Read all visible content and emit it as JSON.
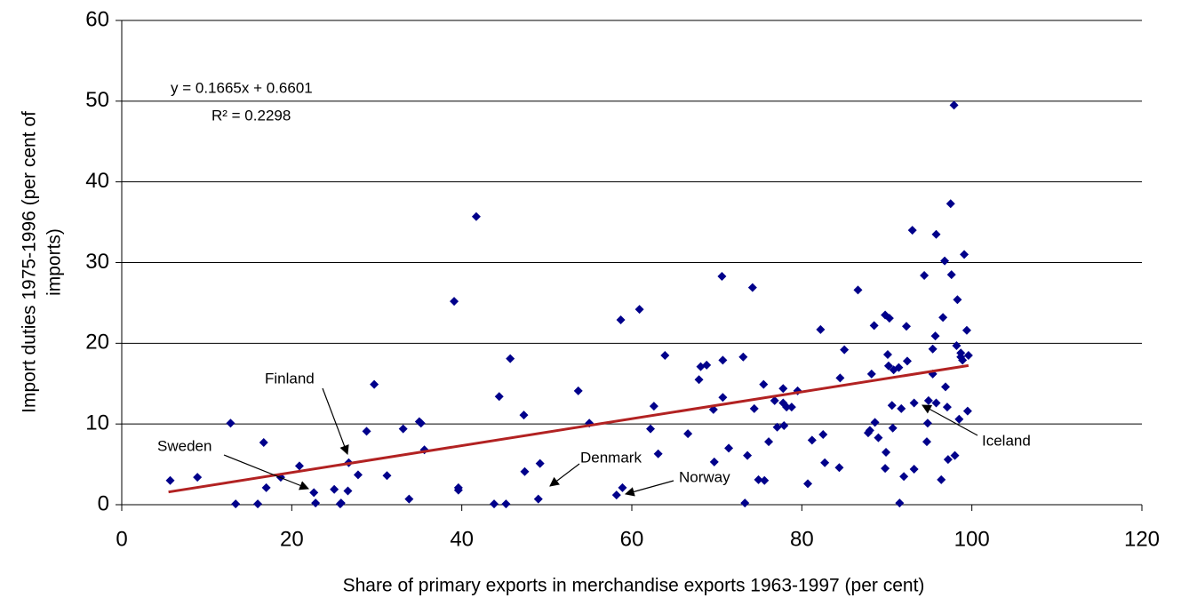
{
  "chart_data": {
    "type": "scatter",
    "xlabel": "Share of primary exports in merchandise exports 1963-1997 (per cent)",
    "ylabel": [
      "Import duties 1975-1996 (per cent of",
      "imports)"
    ],
    "xlim": [
      0,
      120
    ],
    "ylim": [
      0,
      60
    ],
    "xticks": [
      0,
      20,
      40,
      60,
      80,
      100,
      120
    ],
    "yticks": [
      0,
      10,
      20,
      30,
      40,
      50,
      60
    ],
    "grid": true,
    "color": "#00008b",
    "x": [
      5.7,
      8.9,
      12.8,
      13.4,
      16.0,
      16.7,
      17.0,
      18.7,
      20.9,
      22.6,
      22.8,
      25.0,
      25.7,
      25.8,
      26.6,
      26.7,
      27.8,
      28.8,
      29.7,
      31.2,
      33.1,
      33.8,
      35.0,
      35.2,
      35.6,
      39.1,
      39.6,
      39.6,
      41.7,
      43.8,
      44.4,
      45.2,
      45.7,
      47.3,
      47.4,
      49.0,
      49.2,
      53.7,
      55.0,
      58.2,
      58.7,
      58.9,
      60.9,
      62.2,
      62.6,
      63.1,
      63.9,
      66.6,
      67.9,
      68.1,
      68.8,
      69.6,
      69.7,
      70.6,
      70.7,
      70.7,
      71.4,
      73.1,
      73.3,
      73.6,
      74.2,
      74.4,
      74.9,
      75.5,
      75.6,
      76.1,
      76.8,
      77.1,
      77.8,
      77.8,
      77.9,
      78.2,
      78.8,
      79.5,
      80.7,
      81.2,
      82.2,
      82.5,
      82.7,
      84.4,
      84.5,
      85.0,
      86.6,
      87.8,
      88.0,
      88.2,
      88.5,
      88.6,
      89.0,
      89.8,
      89.8,
      89.9,
      90.1,
      90.2,
      90.3,
      90.6,
      90.7,
      90.8,
      91.4,
      91.5,
      91.7,
      92.0,
      92.3,
      92.4,
      93.0,
      93.2,
      93.2,
      94.4,
      94.7,
      94.8,
      94.9,
      95.4,
      95.4,
      95.7,
      95.8,
      95.8,
      96.4,
      96.6,
      96.8,
      96.9,
      97.1,
      97.2,
      97.5,
      97.6,
      97.9,
      98.0,
      98.2,
      98.3,
      98.5,
      98.7,
      98.7,
      98.9,
      99.1,
      99.4,
      99.5,
      99.6
    ],
    "values": [
      3.0,
      3.4,
      10.1,
      0.1,
      0.1,
      7.7,
      2.1,
      3.4,
      4.8,
      1.5,
      0.2,
      1.9,
      0.1,
      0.2,
      1.7,
      5.2,
      3.7,
      9.1,
      14.9,
      3.6,
      9.4,
      0.7,
      10.3,
      10.1,
      6.8,
      25.2,
      2.1,
      1.8,
      35.7,
      0.1,
      13.4,
      0.1,
      18.1,
      11.1,
      4.1,
      0.7,
      5.1,
      14.1,
      10.1,
      1.2,
      22.9,
      2.1,
      24.2,
      9.4,
      12.2,
      6.3,
      18.5,
      8.8,
      15.5,
      17.1,
      17.3,
      11.8,
      5.3,
      28.3,
      13.3,
      17.9,
      7.0,
      18.3,
      0.2,
      6.1,
      26.9,
      11.9,
      3.1,
      14.9,
      3.0,
      7.8,
      12.9,
      9.6,
      14.4,
      12.6,
      9.8,
      12.1,
      12.1,
      14.1,
      2.6,
      8.0,
      21.7,
      8.7,
      5.2,
      4.6,
      15.7,
      19.2,
      26.6,
      8.9,
      9.2,
      16.2,
      22.2,
      10.2,
      8.3,
      23.5,
      4.5,
      6.5,
      18.6,
      17.2,
      23.1,
      12.3,
      9.5,
      16.7,
      17.0,
      0.2,
      11.9,
      3.5,
      22.1,
      17.8,
      34.0,
      12.6,
      4.4,
      28.4,
      7.8,
      10.1,
      12.9,
      16.2,
      19.3,
      20.9,
      33.5,
      12.6,
      3.1,
      23.2,
      30.2,
      14.6,
      12.1,
      5.6,
      37.3,
      28.5,
      49.5,
      6.1,
      19.7,
      25.4,
      10.6,
      18.3,
      18.8,
      17.9,
      31.0,
      21.6,
      11.6,
      18.5
    ],
    "trendline": {
      "slope": 0.1665,
      "intercept": 0.6601,
      "x_range": [
        5.5,
        99.6
      ],
      "color": "#b22222"
    },
    "annotations": [
      "y = 0.1665x + 0.6601",
      "R² = 0.2298",
      "Finland",
      "Sweden",
      "Denmark",
      "Norway",
      "Iceland"
    ]
  }
}
